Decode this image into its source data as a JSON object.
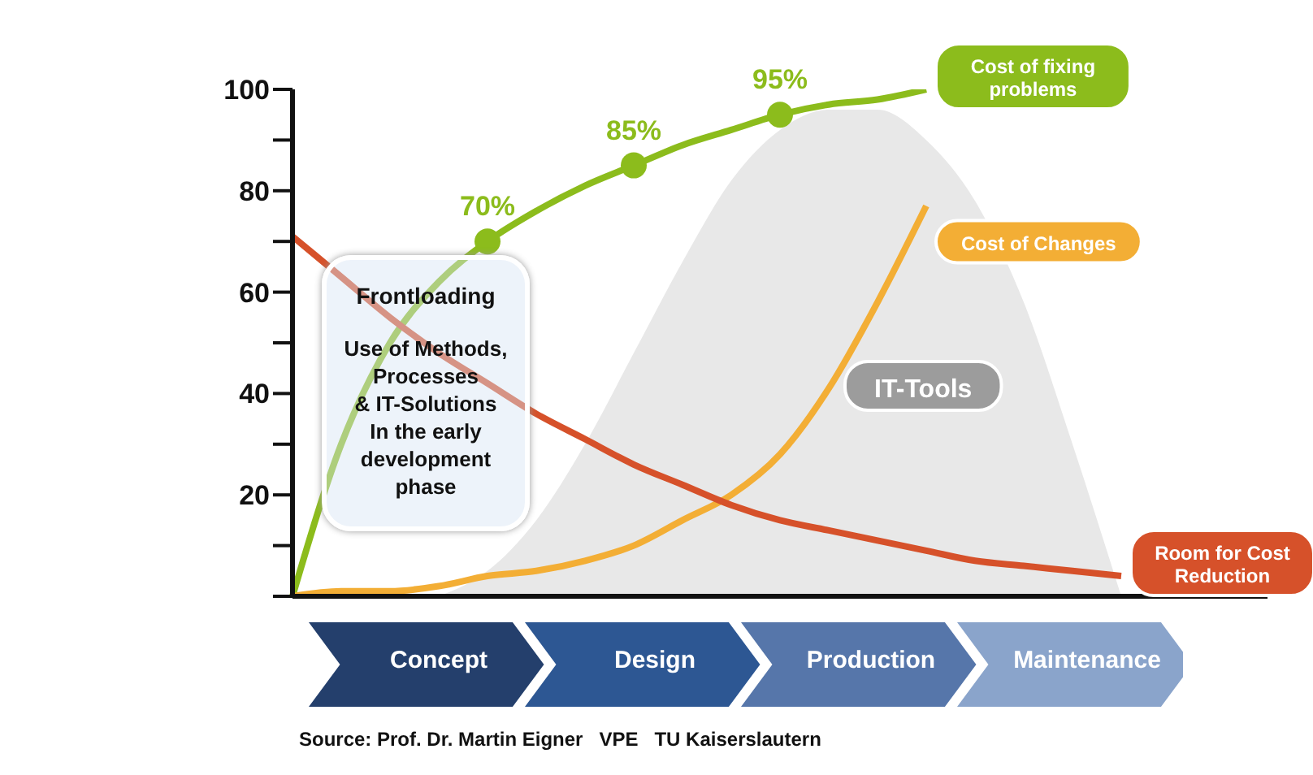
{
  "chart_data": {
    "type": "line",
    "categories": [
      null,
      null,
      null,
      null,
      null,
      null,
      null,
      null,
      null,
      null,
      null,
      null,
      null,
      null,
      null,
      null,
      null,
      null,
      null,
      null,
      null
    ],
    "series": [
      {
        "name": "IT-Tools",
        "type": "area",
        "color": "#e8e8e8",
        "values": [
          null,
          null,
          null,
          0,
          5,
          15,
          30,
          48,
          66,
          82,
          92,
          96,
          96,
          90,
          78,
          58,
          30,
          0,
          null,
          null,
          null
        ]
      },
      {
        "name": "Cost of fixing problems",
        "color": "#8cbc1c",
        "values": [
          0,
          30,
          50,
          62,
          70,
          76,
          81,
          85,
          89,
          92,
          95,
          97,
          98,
          100,
          null,
          null,
          null,
          null,
          null,
          null,
          null
        ],
        "value_labels": [
          null,
          null,
          null,
          null,
          "70%",
          null,
          null,
          "85%",
          null,
          null,
          "95%",
          null,
          null,
          null,
          null,
          null,
          null,
          null,
          null,
          null,
          null
        ]
      },
      {
        "name": "Cost of Changes",
        "color": "#f3ae35",
        "values": [
          0,
          1,
          1,
          2,
          4,
          5,
          7,
          10,
          15,
          20,
          28,
          41,
          58,
          77,
          null,
          null,
          null,
          null,
          null,
          null,
          null
        ]
      },
      {
        "name": "Room for Cost Reduction",
        "color": "#d6512a",
        "values": [
          71,
          63,
          55,
          48,
          42,
          36,
          31,
          26,
          22,
          18,
          15,
          13,
          11,
          9,
          7,
          6,
          5,
          4,
          null,
          null,
          null
        ]
      }
    ],
    "ylim": [
      0,
      100
    ],
    "yticks": [
      {
        "value": 0,
        "label": null
      },
      {
        "value": 10,
        "label": null
      },
      20,
      {
        "value": 30,
        "label": null
      },
      40,
      {
        "value": 50,
        "label": null
      },
      60,
      {
        "value": 70,
        "label": null
      },
      80,
      {
        "value": 90,
        "label": null
      },
      100
    ],
    "line_style": "solid",
    "annotations": [
      "Frontloading",
      "Use of Methods,\nProcesses\n& IT-Solutions\nIn the early\ndevelopment\nphase",
      "Concept",
      "Design",
      "Production",
      "Maintenance",
      "Source: Prof. Dr. Martin Eigner   VPE   TU Kaiserslautern"
    ]
  }
}
